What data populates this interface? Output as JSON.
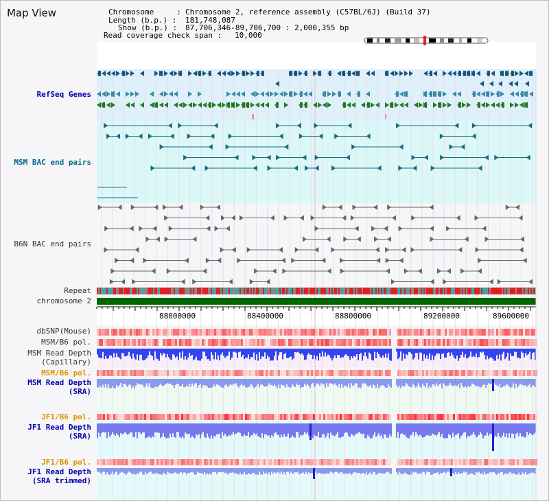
{
  "page": {
    "title": "Map View"
  },
  "info": {
    "chromosome_label": "Chromosome     :",
    "chromosome_value": "Chromosome 2, reference assembly (C57BL/6J) (Build 37)",
    "length_label": "Length (b.p.) :",
    "length_value": "181,748,087",
    "show_label": "Show (b.p.) :",
    "show_value": "87,706,346-89,706,700 : 2,000,355 bp",
    "coverage_label": "Read coverage check span :",
    "coverage_value": "10,000"
  },
  "tracks": {
    "refseq": "RefSeq Genes",
    "msm_bac": "MSM BAC end pairs",
    "b6n_bac": "B6N BAC end pairs",
    "repeat": "Repeat",
    "chromosome": "chromosome 2",
    "dbsnp": "dbSNP(Mouse)",
    "msm_pol": "MSM/B6 pol.",
    "msm_depth_cap_1": "MSM Read Depth",
    "msm_depth_cap_2": "(Capillary)",
    "msm_pol_2": "MSM/B6 pol.",
    "msm_depth_sra_1": "MSM Read Depth",
    "msm_depth_sra_2": "(SRA)",
    "jf1_pol": "JF1/B6 pol.",
    "jf1_depth_sra_1": "JF1 Read Depth",
    "jf1_depth_sra_2": "(SRA)",
    "jf1_pol_2": "JF1/B6 pol.",
    "jf1_depth_trim_1": "JF1 Read Depth",
    "jf1_depth_trim_2": "(SRA trimmed)"
  },
  "axis": {
    "ticks": [
      "88000000",
      "88400000",
      "88800000",
      "89200000",
      "89600000"
    ],
    "range": [
      87706346,
      89706700
    ]
  },
  "colors": {
    "refseq_label": "#0000aa",
    "msm_bac_label": "#006688",
    "orange_label": "#e09000",
    "blue_label": "#0000aa",
    "chromosome_bar": "#006600",
    "gene_dark": "#004466",
    "gene_green": "#006600"
  }
}
